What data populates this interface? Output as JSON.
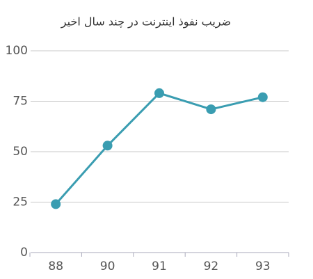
{
  "chart_data": {
    "type": "line",
    "title": "ضریب نفوذ اینترنت در چند سال اخیر",
    "categories": [
      "88",
      "90",
      "91",
      "92",
      "93"
    ],
    "values": [
      24,
      53,
      79,
      71,
      77
    ],
    "color": "#3a9db1",
    "ylim": [
      0,
      100
    ],
    "yticks": [
      0,
      25,
      50,
      75,
      100
    ],
    "grid": true
  }
}
